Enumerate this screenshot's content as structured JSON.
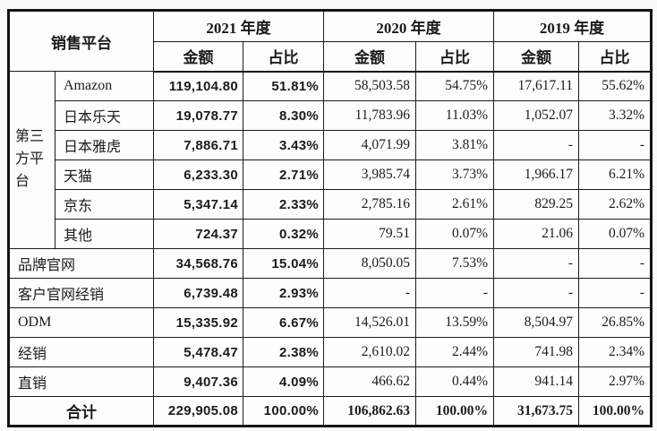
{
  "page": {
    "background_color": "#fbfbfa",
    "text_color": "#1b1b1b",
    "border_color": "#1c1c1c"
  },
  "table": {
    "header": {
      "platform_label": "销售平台",
      "year_groups": [
        {
          "label": "2021 年度"
        },
        {
          "label": "2020 年度"
        },
        {
          "label": "2019 年度"
        }
      ],
      "sub_amount": "金额",
      "sub_ratio": "占比"
    },
    "group_cell": {
      "label": "第三方平台",
      "rowspan": 6
    },
    "col_keys": [
      "2021-amount",
      "2021-ratio",
      "2020-amount",
      "2020-ratio",
      "2019-amount",
      "2019-ratio"
    ],
    "rows": [
      {
        "name": "amazon",
        "label": "Amazon",
        "values": [
          "119,104.80",
          "51.81%",
          "58,503.58",
          "54.75%",
          "17,617.11",
          "55.62%"
        ]
      },
      {
        "name": "rakuten-japan",
        "label": "日本乐天",
        "values": [
          "19,078.77",
          "8.30%",
          "11,783.96",
          "11.03%",
          "1,052.07",
          "3.32%"
        ]
      },
      {
        "name": "yahoo-japan",
        "label": "日本雅虎",
        "values": [
          "7,886.71",
          "3.43%",
          "4,071.99",
          "3.81%",
          "-",
          "-"
        ]
      },
      {
        "name": "tmall",
        "label": "天猫",
        "values": [
          "6,233.30",
          "2.71%",
          "3,985.74",
          "3.73%",
          "1,966.17",
          "6.21%"
        ]
      },
      {
        "name": "jd",
        "label": "京东",
        "values": [
          "5,347.14",
          "2.33%",
          "2,785.16",
          "2.61%",
          "829.25",
          "2.62%"
        ]
      },
      {
        "name": "other",
        "label": "其他",
        "values": [
          "724.37",
          "0.32%",
          "79.51",
          "0.07%",
          "21.06",
          "0.07%"
        ]
      },
      {
        "name": "brand-site",
        "label": "品牌官网",
        "colspan": 2,
        "values": [
          "34,568.76",
          "15.04%",
          "8,050.05",
          "7.53%",
          "-",
          "-"
        ]
      },
      {
        "name": "client-site-distr",
        "label": "客户官网经销",
        "colspan": 2,
        "values": [
          "6,739.48",
          "2.93%",
          "-",
          "-",
          "-",
          "-"
        ]
      },
      {
        "name": "odm",
        "label": "ODM",
        "colspan": 2,
        "values": [
          "15,335.92",
          "6.67%",
          "14,526.01",
          "13.59%",
          "8,504.97",
          "26.85%"
        ]
      },
      {
        "name": "distribution",
        "label": "经销",
        "colspan": 2,
        "values": [
          "5,478.47",
          "2.38%",
          "2,610.02",
          "2.44%",
          "741.98",
          "2.34%"
        ]
      },
      {
        "name": "direct-sales",
        "label": "直销",
        "colspan": 2,
        "values": [
          "9,407.36",
          "4.09%",
          "466.62",
          "0.44%",
          "941.14",
          "2.97%"
        ]
      }
    ],
    "total_row": {
      "name": "total",
      "label": "合计",
      "values": [
        "229,905.08",
        "100.00%",
        "106,862.63",
        "100.00%",
        "31,673.75",
        "100.00%"
      ]
    }
  }
}
